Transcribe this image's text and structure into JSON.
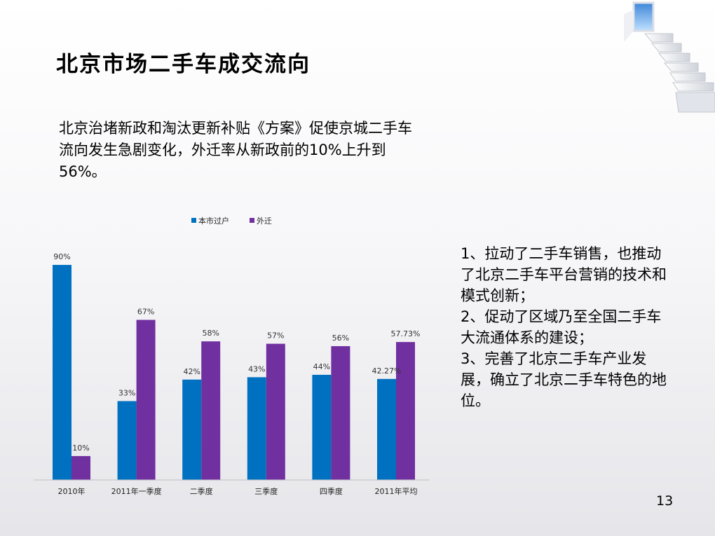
{
  "slide": {
    "title": "北京市场二手车成交流向",
    "intro": "北京治堵新政和淘汰更新补贴《方案》促使京城二手车流向发生急剧变化，外迁率从新政前的10%上升到56%。",
    "notes": [
      "1、拉动了二手车销售，也推动了北京二手车平台营销的技术和模式创新；",
      "2、促动了区域乃至全国二手车大流通体系的建设；",
      "3、完善了北京二手车产业发展，确立了北京二手车特色的地位。"
    ],
    "page_number": "13"
  },
  "chart_data": {
    "type": "bar",
    "categories": [
      "2010年",
      "2011年一季度",
      "二季度",
      "三季度",
      "四季度",
      "2011年平均"
    ],
    "series": [
      {
        "name": "本市过户",
        "color": "#0070C0",
        "values": [
          90,
          33,
          42,
          43,
          44,
          42.27
        ],
        "labels": [
          "90%",
          "33%",
          "42%",
          "43%",
          "44%",
          "42.27%"
        ]
      },
      {
        "name": "外迁",
        "color": "#7030A0",
        "values": [
          10,
          67,
          58,
          57,
          56,
          57.73
        ],
        "labels": [
          "10%",
          "67%",
          "58%",
          "57%",
          "56%",
          "57.73%"
        ]
      }
    ],
    "ylim": [
      0,
      100
    ],
    "legend": "top-center",
    "grid": false
  }
}
